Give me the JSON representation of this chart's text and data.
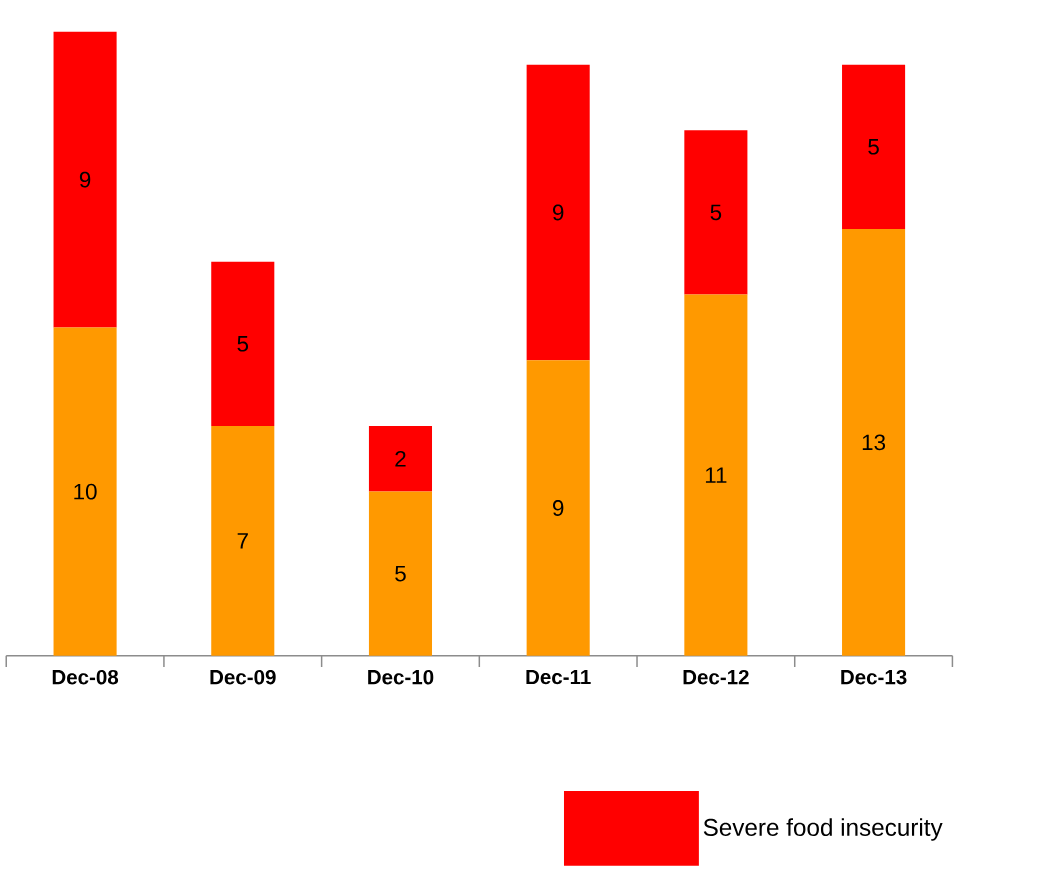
{
  "chart_data": {
    "type": "bar",
    "stacked": true,
    "data_labels": true,
    "legend": "bottom right",
    "categories": [
      "Dec-08",
      "Dec-09",
      "Dec-10",
      "Dec-11",
      "Dec-12",
      "Dec-13"
    ],
    "series": [
      {
        "color": "#ff9900",
        "values": [
          10,
          7,
          5,
          9,
          11,
          13
        ]
      },
      {
        "name": "Severe food insecurity",
        "color": "#ff0000",
        "values": [
          9,
          5,
          2,
          9,
          5,
          5
        ]
      }
    ]
  }
}
